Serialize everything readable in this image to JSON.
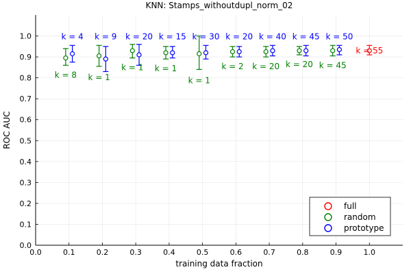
{
  "chart_data": {
    "type": "scatter",
    "title": "KNN: Stamps_withoutdupl_norm_02",
    "xlabel": "training data fraction",
    "ylabel": "ROC AUC",
    "xlim": [
      0.0,
      1.1
    ],
    "ylim": [
      0.0,
      1.1
    ],
    "xticks": [
      "0.0",
      "0.1",
      "0.2",
      "0.3",
      "0.4",
      "0.5",
      "0.6",
      "0.7",
      "0.8",
      "0.9",
      "1.0"
    ],
    "xtick_values": [
      0.0,
      0.1,
      0.2,
      0.3,
      0.4,
      0.5,
      0.6,
      0.7,
      0.8,
      0.9,
      1.0
    ],
    "yticks": [
      "0.0",
      "0.1",
      "0.2",
      "0.3",
      "0.4",
      "0.5",
      "0.6",
      "0.7",
      "0.8",
      "0.9",
      "1.0"
    ],
    "ytick_values": [
      0.0,
      0.1,
      0.2,
      0.3,
      0.4,
      0.5,
      0.6,
      0.7,
      0.8,
      0.9,
      1.0
    ],
    "grid": true,
    "legend_position": "bottom-right",
    "series": [
      {
        "name": "full",
        "color": "#ff0000",
        "points": [
          {
            "x": 1.0,
            "y": 0.93,
            "lo": 0.91,
            "hi": 0.955,
            "k": "k = 55"
          }
        ]
      },
      {
        "name": "random",
        "color": "#008000",
        "points": [
          {
            "x": 0.09,
            "y": 0.895,
            "lo": 0.86,
            "hi": 0.94,
            "k": "k = 8"
          },
          {
            "x": 0.19,
            "y": 0.905,
            "lo": 0.855,
            "hi": 0.955,
            "k": "k = 1"
          },
          {
            "x": 0.29,
            "y": 0.93,
            "lo": 0.895,
            "hi": 0.96,
            "k": "k = 1"
          },
          {
            "x": 0.39,
            "y": 0.92,
            "lo": 0.89,
            "hi": 0.95,
            "k": "k = 1"
          },
          {
            "x": 0.49,
            "y": 0.915,
            "lo": 0.84,
            "hi": 1.0,
            "k": "k = 1"
          },
          {
            "x": 0.59,
            "y": 0.925,
            "lo": 0.9,
            "hi": 0.95,
            "k": "k = 2"
          },
          {
            "x": 0.69,
            "y": 0.925,
            "lo": 0.9,
            "hi": 0.95,
            "k": "k = 20"
          },
          {
            "x": 0.79,
            "y": 0.93,
            "lo": 0.91,
            "hi": 0.95,
            "k": "k = 20"
          },
          {
            "x": 0.89,
            "y": 0.93,
            "lo": 0.905,
            "hi": 0.955,
            "k": "k = 45"
          }
        ]
      },
      {
        "name": "prototype",
        "color": "#0000ff",
        "points": [
          {
            "x": 0.11,
            "y": 0.915,
            "lo": 0.875,
            "hi": 0.955,
            "k": "k = 4"
          },
          {
            "x": 0.21,
            "y": 0.89,
            "lo": 0.83,
            "hi": 0.95,
            "k": "k = 9"
          },
          {
            "x": 0.31,
            "y": 0.91,
            "lo": 0.86,
            "hi": 0.96,
            "k": "k = 20"
          },
          {
            "x": 0.41,
            "y": 0.92,
            "lo": 0.895,
            "hi": 0.95,
            "k": "k = 15"
          },
          {
            "x": 0.51,
            "y": 0.92,
            "lo": 0.89,
            "hi": 0.955,
            "k": "k = 30"
          },
          {
            "x": 0.61,
            "y": 0.925,
            "lo": 0.9,
            "hi": 0.95,
            "k": "k = 20"
          },
          {
            "x": 0.71,
            "y": 0.93,
            "lo": 0.905,
            "hi": 0.955,
            "k": "k = 40"
          },
          {
            "x": 0.81,
            "y": 0.93,
            "lo": 0.905,
            "hi": 0.955,
            "k": "k = 45"
          },
          {
            "x": 0.91,
            "y": 0.935,
            "lo": 0.91,
            "hi": 0.955,
            "k": "k = 50"
          }
        ]
      }
    ]
  }
}
